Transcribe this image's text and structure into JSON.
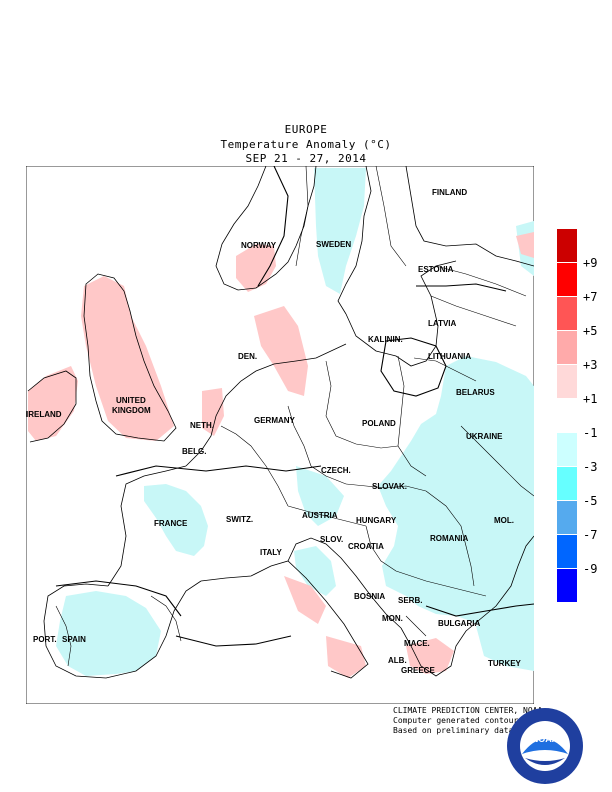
{
  "title": {
    "line1": "EUROPE",
    "line2": "Temperature Anomaly (°C)",
    "line3": "SEP 21 - 27, 2014"
  },
  "countries": [
    {
      "name": "FINLAND",
      "key": "finland"
    },
    {
      "name": "NORWAY",
      "key": "norway"
    },
    {
      "name": "SWEDEN",
      "key": "sweden"
    },
    {
      "name": "ESTONIA",
      "key": "estonia"
    },
    {
      "name": "LATVIA",
      "key": "latvia"
    },
    {
      "name": "DEN.",
      "key": "den"
    },
    {
      "name": "KALININ.",
      "key": "kalinin"
    },
    {
      "name": "LITHUANIA",
      "key": "lithuania"
    },
    {
      "name": "IRELAND",
      "key": "ireland"
    },
    {
      "name": "UNITED",
      "key": "uk1"
    },
    {
      "name": "KINGDOM",
      "key": "uk2"
    },
    {
      "name": "BELARUS",
      "key": "belarus"
    },
    {
      "name": "NETH.",
      "key": "neth"
    },
    {
      "name": "GERMANY",
      "key": "germany"
    },
    {
      "name": "POLAND",
      "key": "poland"
    },
    {
      "name": "BELG.",
      "key": "belg"
    },
    {
      "name": "UKRAINE",
      "key": "ukraine"
    },
    {
      "name": "CZECH.",
      "key": "czech"
    },
    {
      "name": "SLOVAK.",
      "key": "slovak"
    },
    {
      "name": "FRANCE",
      "key": "france"
    },
    {
      "name": "SWITZ.",
      "key": "switz"
    },
    {
      "name": "AUSTRIA",
      "key": "austria"
    },
    {
      "name": "HUNGARY",
      "key": "hungary"
    },
    {
      "name": "MOL.",
      "key": "mol"
    },
    {
      "name": "SLOV.",
      "key": "slov"
    },
    {
      "name": "CROATIA",
      "key": "croatia"
    },
    {
      "name": "ROMANIA",
      "key": "romania"
    },
    {
      "name": "ITALY",
      "key": "italy"
    },
    {
      "name": "BOSNIA",
      "key": "bosnia"
    },
    {
      "name": "SERB.",
      "key": "serb"
    },
    {
      "name": "MON.",
      "key": "mon"
    },
    {
      "name": "BULGARIA",
      "key": "bulgaria"
    },
    {
      "name": "PORT.",
      "key": "port"
    },
    {
      "name": "SPAIN",
      "key": "spain"
    },
    {
      "name": "MACE.",
      "key": "mace"
    },
    {
      "name": "ALB.",
      "key": "alb"
    },
    {
      "name": "GREECE",
      "key": "greece"
    },
    {
      "name": "TURKEY",
      "key": "turkey"
    }
  ],
  "legend": {
    "colors": [
      "#cc0000",
      "#ff0000",
      "#ff5555",
      "#ffaaaa",
      "#ffd9d9",
      "#ffffff",
      "#ccffff",
      "#66ffff",
      "#55aaee",
      "#0066ff",
      "#0000ff"
    ],
    "labels": [
      "+9",
      "+7",
      "+5",
      "+3",
      "+1",
      "-1",
      "-3",
      "-5",
      "-7",
      "-9"
    ]
  },
  "colors": {
    "warm": "#ffc8c8",
    "cool": "#c8f7f7",
    "contour": "#000000"
  },
  "credit": {
    "line1": "CLIMATE PREDICTION CENTER, NOAA",
    "line2": "Computer generated contours",
    "line3": "Based on preliminary data"
  },
  "logo": {
    "text": "NOAA"
  }
}
